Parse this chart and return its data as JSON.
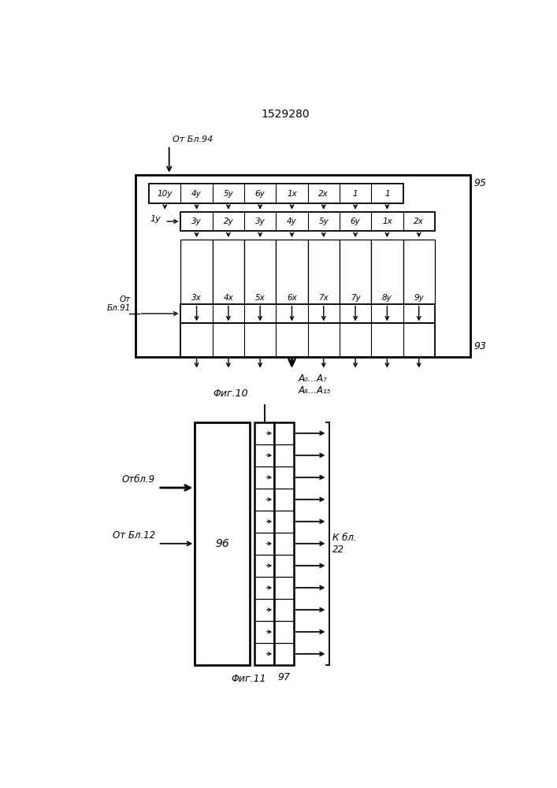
{
  "title": "1529280",
  "fig10_label": "Φиг.10",
  "fig11_label": "Φиг.11",
  "fig10_from_label": "От Бл.94",
  "fig10_from2_label": "От\nБл.91",
  "fig10_block95_label": "95",
  "fig10_block93_label": "93",
  "fig10_output_label": "A₀...A₇\nA₈...A₁₅",
  "fig10_row1_cells": [
    "10у",
    "4у",
    "5у",
    "6у",
    "1х",
    "2х",
    "1",
    "1"
  ],
  "fig10_row2_cells": [
    "3у",
    "2у",
    "3у",
    "4у",
    "5у",
    "6у",
    "1х",
    "2х"
  ],
  "fig10_row2_prefix": "1у",
  "fig10_row3_cells": [
    "3х",
    "4х",
    "5х",
    "6х",
    "7х",
    "7у",
    "8у",
    "9у"
  ],
  "fig11_from1_label": "Отбл.9",
  "fig11_from2_label": "От Бл.12",
  "fig11_block96_label": "96",
  "fig11_block97_label": "97",
  "fig11_right_label": "К бл.\n22",
  "fig11_num_rows": 11,
  "bg_color": "#ffffff",
  "line_color": "#000000"
}
